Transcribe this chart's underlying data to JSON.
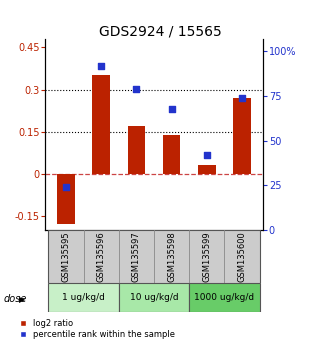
{
  "title": "GDS2924 / 15565",
  "categories": [
    "GSM135595",
    "GSM135596",
    "GSM135597",
    "GSM135598",
    "GSM135599",
    "GSM135600"
  ],
  "log2_ratio": [
    -0.18,
    0.35,
    0.17,
    0.14,
    0.03,
    0.27
  ],
  "percentile_rank": [
    24,
    92,
    79,
    68,
    42,
    74
  ],
  "dose_groups": [
    {
      "label": "1 ug/kg/d",
      "color": "#c8f0c8",
      "samples": [
        0,
        1
      ]
    },
    {
      "label": "10 ug/kg/d",
      "color": "#a8e8a8",
      "samples": [
        2,
        3
      ]
    },
    {
      "label": "1000 ug/kg/d",
      "color": "#68cc68",
      "samples": [
        4,
        5
      ]
    }
  ],
  "bar_color": "#bb2200",
  "dot_color": "#2233cc",
  "left_ylim": [
    -0.2,
    0.48
  ],
  "right_ylim": [
    0,
    107
  ],
  "left_yticks": [
    -0.15,
    0,
    0.15,
    0.3,
    0.45
  ],
  "right_yticks": [
    0,
    25,
    50,
    75,
    100
  ],
  "hlines_dotted": [
    0.15,
    0.3
  ],
  "hline_color_dashed": "#cc4444",
  "hline_color_dotted": "black",
  "legend_red_label": "log2 ratio",
  "legend_blue_label": "percentile rank within the sample",
  "dose_label": "dose",
  "background_color": "#ffffff",
  "plot_bg": "#ffffff",
  "title_fontsize": 10,
  "tick_fontsize": 7,
  "bar_width": 0.5,
  "sample_bg": "#cccccc",
  "sample_border": "#888888"
}
